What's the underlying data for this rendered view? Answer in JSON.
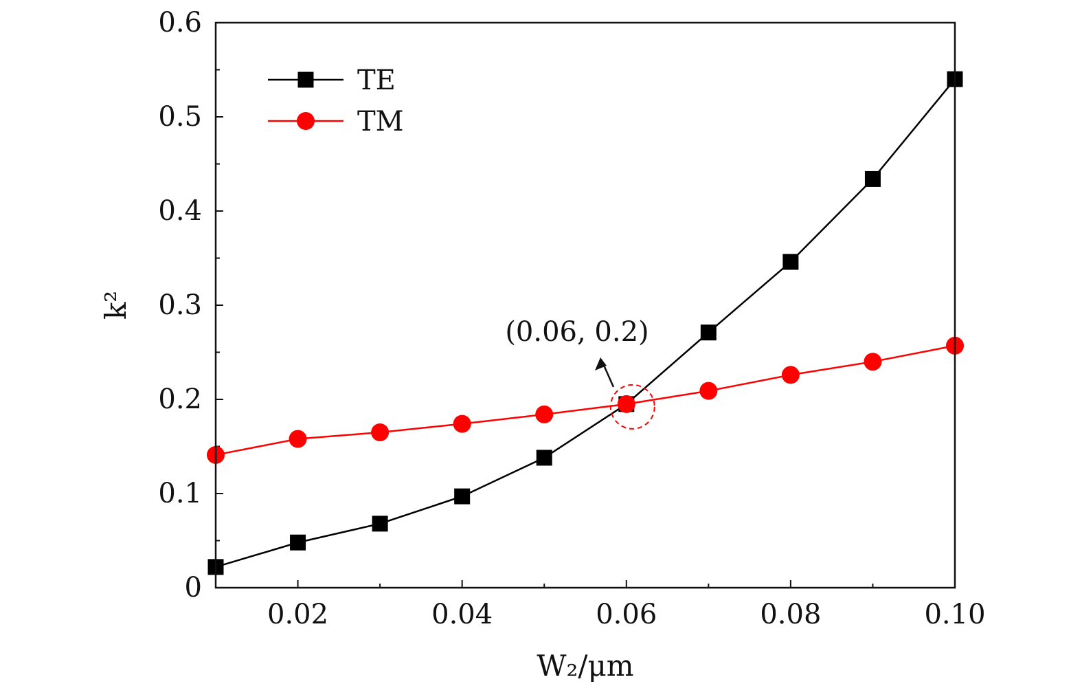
{
  "chart_data": {
    "type": "line",
    "title": "",
    "xlabel": "W₂/μm",
    "ylabel": "k²",
    "x": [
      0.01,
      0.02,
      0.03,
      0.04,
      0.05,
      0.06,
      0.07,
      0.08,
      0.09,
      0.1
    ],
    "xlim": [
      0.01,
      0.1
    ],
    "ylim": [
      0,
      0.6
    ],
    "xticks": [
      0.02,
      0.04,
      0.06,
      0.08,
      0.1
    ],
    "xtick_labels": [
      "0.02",
      "0.04",
      "0.06",
      "0.08",
      "0.10"
    ],
    "yticks": [
      0,
      0.1,
      0.2,
      0.3,
      0.4,
      0.5,
      0.6
    ],
    "ytick_labels": [
      "0",
      "0.1",
      "0.2",
      "0.3",
      "0.4",
      "0.5",
      "0.6"
    ],
    "grid": false,
    "legend_position": "top-left",
    "series": [
      {
        "name": "TE",
        "color": "#000000",
        "marker": "square",
        "values": [
          0.022,
          0.048,
          0.068,
          0.097,
          0.138,
          0.195,
          0.271,
          0.346,
          0.434,
          0.54
        ]
      },
      {
        "name": "TM",
        "color": "#ff0000",
        "marker": "circle",
        "values": [
          0.141,
          0.158,
          0.165,
          0.174,
          0.184,
          0.195,
          0.209,
          0.226,
          0.24,
          0.257
        ]
      }
    ],
    "annotations": [
      {
        "text": "(0.06, 0.2)",
        "x": 0.06,
        "y": 0.195
      }
    ]
  }
}
